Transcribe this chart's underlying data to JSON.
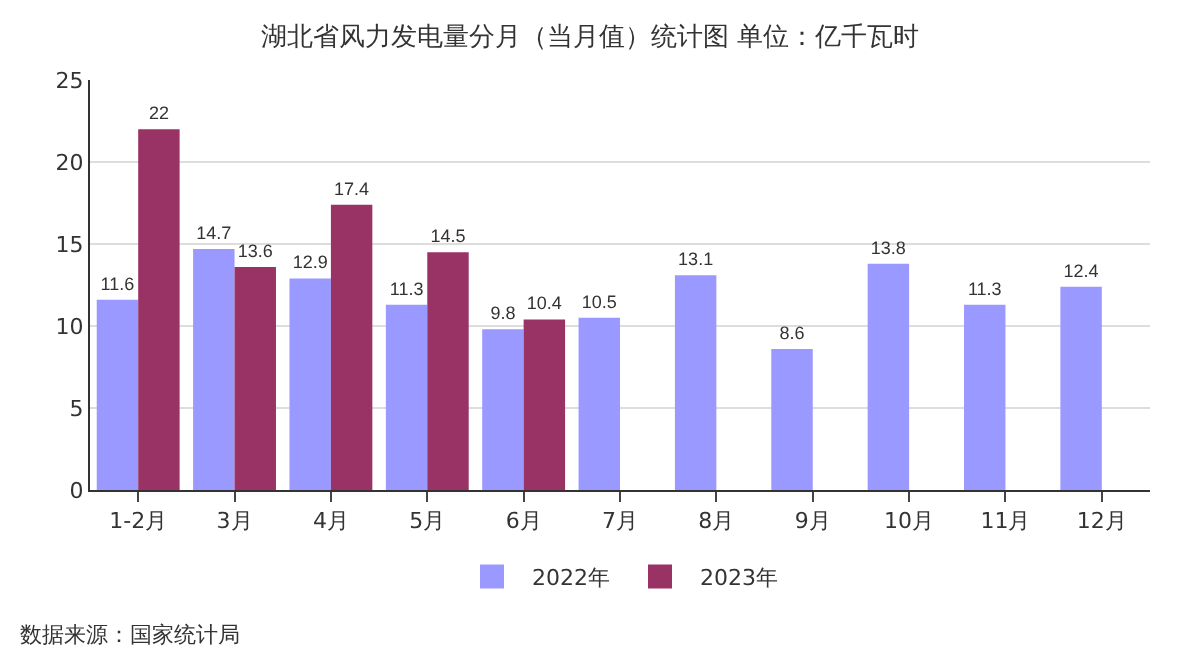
{
  "chart_data": {
    "type": "bar",
    "title": "湖北省风力发电量分月（当月值）统计图 单位：亿千瓦时",
    "categories": [
      "1-2月",
      "3月",
      "4月",
      "5月",
      "6月",
      "7月",
      "8月",
      "9月",
      "10月",
      "11月",
      "12月"
    ],
    "series": [
      {
        "name": "2022年",
        "color": "#9999ff",
        "values": [
          11.6,
          14.7,
          12.9,
          11.3,
          9.8,
          10.5,
          13.1,
          8.6,
          13.8,
          11.3,
          12.4
        ]
      },
      {
        "name": "2023年",
        "color": "#993366",
        "values": [
          22,
          13.6,
          17.4,
          14.5,
          10.4,
          null,
          null,
          null,
          null,
          null,
          null
        ]
      }
    ],
    "ylim": [
      0,
      25
    ],
    "yticks": [
      0,
      5,
      10,
      15,
      20,
      25
    ],
    "grid": "y",
    "legend": "bottom",
    "data_labels": true,
    "annotations": [
      "数据来源：国家统计局"
    ]
  }
}
